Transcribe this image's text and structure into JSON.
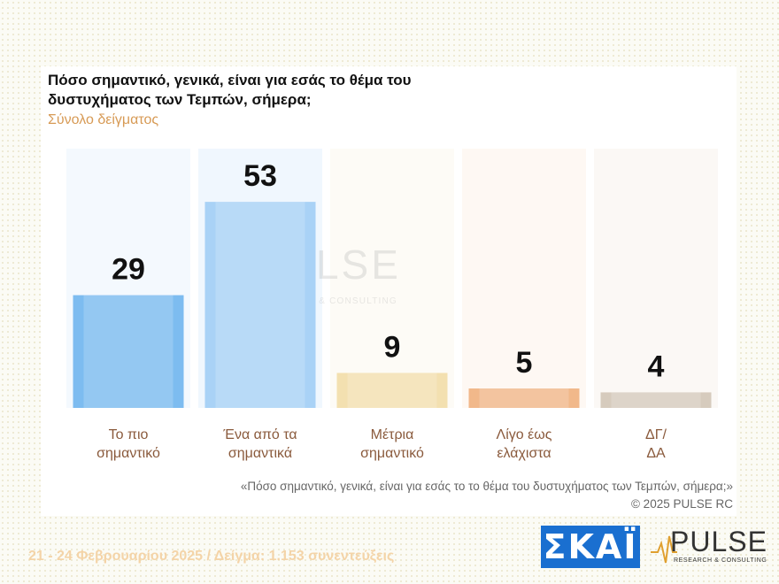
{
  "header": {
    "title": "Πόσο σημαντικό, γενικά, είναι για εσάς το θέμα του δυστυχήματος των Τεμπών, σήμερα;",
    "subtitle": "Σύνολο δείγματος"
  },
  "chart_data": {
    "type": "bar",
    "title": "Πόσο σημαντικό, γενικά, είναι για εσάς το θέμα του δυστυχήματος των Τεμπών, σήμερα;",
    "subtitle": "Σύνολο δείγματος",
    "categories": [
      [
        "Το πιο",
        "σημαντικό"
      ],
      [
        "Ένα από τα",
        "σημαντικά"
      ],
      [
        "Μέτρια",
        "σημαντικό"
      ],
      [
        "Λίγο έως",
        "ελάχιστα"
      ],
      [
        "ΔΓ/",
        "ΔΑ"
      ]
    ],
    "values": [
      29,
      53,
      9,
      5,
      4
    ],
    "ylim": [
      0,
      66
    ],
    "bar_colors": [
      "#7dbcf0",
      "#a9d2f6",
      "#f3e0b0",
      "#f1b88a",
      "#d6cbbd"
    ],
    "bg_colors": [
      "#f4f9fe",
      "#f0f7fe",
      "#fdfbf6",
      "#fef8f3",
      "#fbf8f5"
    ],
    "grid": false,
    "legend": "none"
  },
  "watermark": {
    "word": "PULSE",
    "sub": "RESEARCH & CONSULTING"
  },
  "note": {
    "question": "«Πόσο σημαντικό, γενικά, είναι για εσάς το το θέμα του δυστυχήματος των Τεμπών, σήμερα;»",
    "copyright": "©  2025  PULSE RC"
  },
  "footer": {
    "date_sample": "21 - 24 Φεβρουαρίου 2025  /  Δείγμα:  1.153 συνεντεύξεις",
    "logo_skai": "ΣΚΑΪ",
    "logo_pulse": "PULSE",
    "logo_pulse_sub": "RESEARCH & CONSULTING"
  },
  "colors": {
    "label_text": "#8a5a3c",
    "value_text": "#111111",
    "subtitle": "#d79a55",
    "footer_date": "#f4d4a8",
    "skai_bg": "#1a6fd0"
  }
}
